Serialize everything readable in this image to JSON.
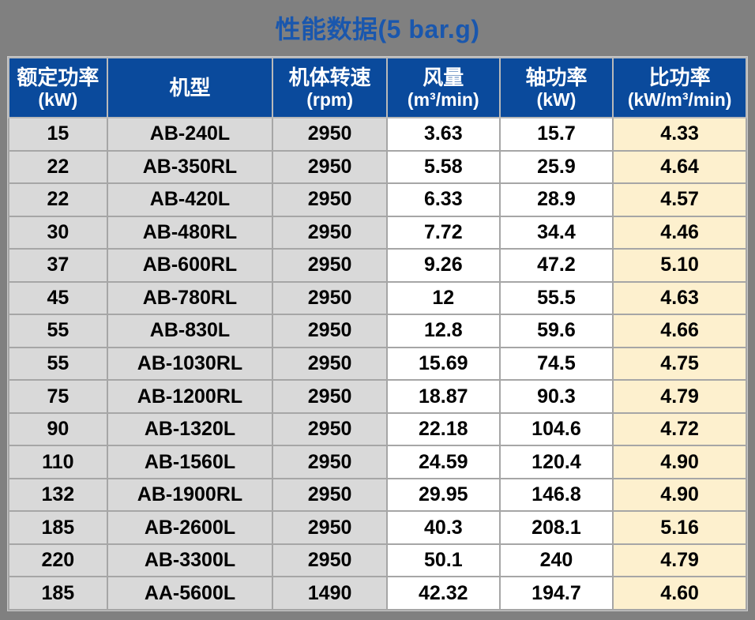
{
  "page": {
    "background_color": "#808080",
    "grid_color": "#a6a6a6"
  },
  "title": {
    "text": "性能数据(5 bar.g)",
    "color": "#1a57ad"
  },
  "table": {
    "header_bg": "#0a4a9c",
    "column_bg": [
      "#d9d9d9",
      "#d9d9d9",
      "#d9d9d9",
      "#ffffff",
      "#ffffff",
      "#fdf0ce"
    ],
    "column_widths_pct": [
      13.35,
      22.44,
      15.49,
      15.28,
      15.38,
      18.06
    ],
    "columns": [
      {
        "name": "额定功率",
        "unit": "(kW)"
      },
      {
        "name": "机型",
        "unit": ""
      },
      {
        "name": "机体转速",
        "unit": "(rpm)"
      },
      {
        "name": "风量",
        "unit": "(m³/min)"
      },
      {
        "name": "轴功率",
        "unit": "(kW)"
      },
      {
        "name": "比功率",
        "unit": "(kW/m³/min)"
      }
    ],
    "rows": [
      [
        "15",
        "AB-240L",
        "2950",
        "3.63",
        "15.7",
        "4.33"
      ],
      [
        "22",
        "AB-350RL",
        "2950",
        "5.58",
        "25.9",
        "4.64"
      ],
      [
        "22",
        "AB-420L",
        "2950",
        "6.33",
        "28.9",
        "4.57"
      ],
      [
        "30",
        "AB-480RL",
        "2950",
        "7.72",
        "34.4",
        "4.46"
      ],
      [
        "37",
        "AB-600RL",
        "2950",
        "9.26",
        "47.2",
        "5.10"
      ],
      [
        "45",
        "AB-780RL",
        "2950",
        "12",
        "55.5",
        "4.63"
      ],
      [
        "55",
        "AB-830L",
        "2950",
        "12.8",
        "59.6",
        "4.66"
      ],
      [
        "55",
        "AB-1030RL",
        "2950",
        "15.69",
        "74.5",
        "4.75"
      ],
      [
        "75",
        "AB-1200RL",
        "2950",
        "18.87",
        "90.3",
        "4.79"
      ],
      [
        "90",
        "AB-1320L",
        "2950",
        "22.18",
        "104.6",
        "4.72"
      ],
      [
        "110",
        "AB-1560L",
        "2950",
        "24.59",
        "120.4",
        "4.90"
      ],
      [
        "132",
        "AB-1900RL",
        "2950",
        "29.95",
        "146.8",
        "4.90"
      ],
      [
        "185",
        "AB-2600L",
        "2950",
        "40.3",
        "208.1",
        "5.16"
      ],
      [
        "220",
        "AB-3300L",
        "2950",
        "50.1",
        "240",
        "4.79"
      ],
      [
        "185",
        "AA-5600L",
        "1490",
        "42.32",
        "194.7",
        "4.60"
      ]
    ]
  }
}
